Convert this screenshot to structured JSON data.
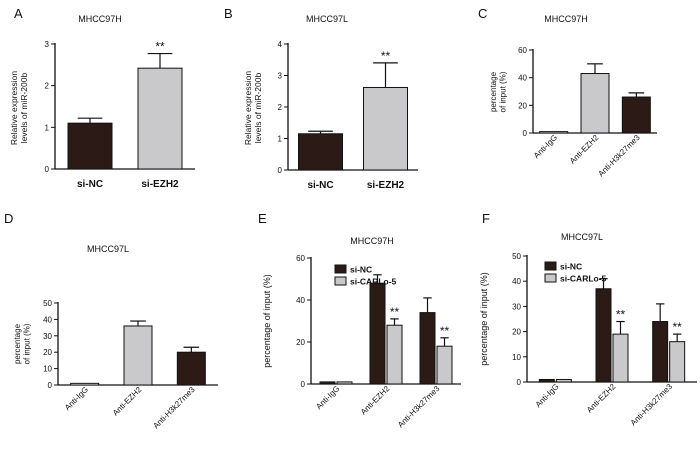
{
  "colors": {
    "dark": "#2b1a15",
    "light": "#c9c9cb",
    "white": "#ffffff",
    "ink": "#111111"
  },
  "chart_data": [
    {
      "panel": "A",
      "type": "bar",
      "title": "MHCC97H",
      "ylabel": [
        "Relative expression",
        "levels of miR-200b"
      ],
      "ylim": [
        0,
        3
      ],
      "yticks": [
        0,
        1,
        2,
        3
      ],
      "categories": [
        "si-NC",
        "si-EZH2"
      ],
      "values": [
        1.1,
        2.42
      ],
      "errors": [
        0.12,
        0.35
      ],
      "colors": [
        "dark",
        "light"
      ],
      "sig": [
        "",
        "**"
      ]
    },
    {
      "panel": "B",
      "type": "bar",
      "title": "MHCC97L",
      "ylabel": [
        "Relative expression",
        "levels of miR-200b"
      ],
      "ylim": [
        0,
        4
      ],
      "yticks": [
        0,
        1,
        2,
        3,
        4
      ],
      "categories": [
        "si-NC",
        "si-EZH2"
      ],
      "values": [
        1.15,
        2.62
      ],
      "errors": [
        0.08,
        0.78
      ],
      "colors": [
        "dark",
        "light"
      ],
      "sig": [
        "",
        "**"
      ]
    },
    {
      "panel": "C",
      "type": "bar",
      "title": "MHCC97H",
      "ylabel": [
        "percentage",
        "of input (%)"
      ],
      "ylim": [
        0,
        60
      ],
      "yticks": [
        0,
        20,
        40,
        60
      ],
      "categories": [
        "Anti-IgG",
        "Anti-EZH2",
        "Anti-H3k27me3"
      ],
      "values": [
        1,
        43,
        26
      ],
      "errors": [
        0,
        7,
        3
      ],
      "colors": [
        "white",
        "light",
        "dark"
      ],
      "sig": [
        "",
        "",
        ""
      ]
    },
    {
      "panel": "D",
      "type": "bar",
      "title": "MHCC97L",
      "ylabel": [
        "percentage",
        "of input (%)"
      ],
      "ylim": [
        0,
        50
      ],
      "yticks": [
        0,
        10,
        20,
        30,
        40,
        50
      ],
      "categories": [
        "Anti-IgG",
        "Anti-EZH2",
        "Anti-H3k27me3"
      ],
      "values": [
        1,
        36,
        20
      ],
      "errors": [
        0,
        3,
        3
      ],
      "colors": [
        "white",
        "light",
        "dark"
      ],
      "sig": [
        "",
        "",
        ""
      ]
    },
    {
      "panel": "E",
      "type": "bar",
      "title": "MHCC97H",
      "ylabel": [
        "percentage of input (%)"
      ],
      "ylim": [
        0,
        60
      ],
      "yticks": [
        0,
        20,
        40,
        60
      ],
      "categories": [
        "Anti-IgG",
        "Anti-EZH2",
        "Anti-H3k27me3"
      ],
      "series": [
        {
          "name": "si-NC",
          "color": "dark",
          "values": [
            1,
            48,
            34
          ],
          "errors": [
            0,
            4,
            7
          ],
          "sig": [
            "",
            "",
            ""
          ]
        },
        {
          "name": "si-CARLo-5",
          "color": "light",
          "values": [
            1,
            28,
            18
          ],
          "errors": [
            0,
            3,
            4
          ],
          "sig": [
            "",
            "**",
            "**"
          ]
        }
      ]
    },
    {
      "panel": "F",
      "type": "bar",
      "title": "MHCC97L",
      "ylabel": [
        "percentage of input (%)"
      ],
      "ylim": [
        0,
        50
      ],
      "yticks": [
        0,
        10,
        20,
        30,
        40,
        50
      ],
      "categories": [
        "Anti-IgG",
        "Anti-EZH2",
        "Anti-H3k27me3"
      ],
      "series": [
        {
          "name": "si-NC",
          "color": "dark",
          "values": [
            1,
            37,
            24
          ],
          "errors": [
            0,
            4,
            7
          ],
          "sig": [
            "",
            "",
            ""
          ]
        },
        {
          "name": "si-CARLo-5",
          "color": "light",
          "values": [
            1,
            19,
            16
          ],
          "errors": [
            0,
            5,
            3
          ],
          "sig": [
            "",
            "**",
            "**"
          ]
        }
      ]
    }
  ]
}
